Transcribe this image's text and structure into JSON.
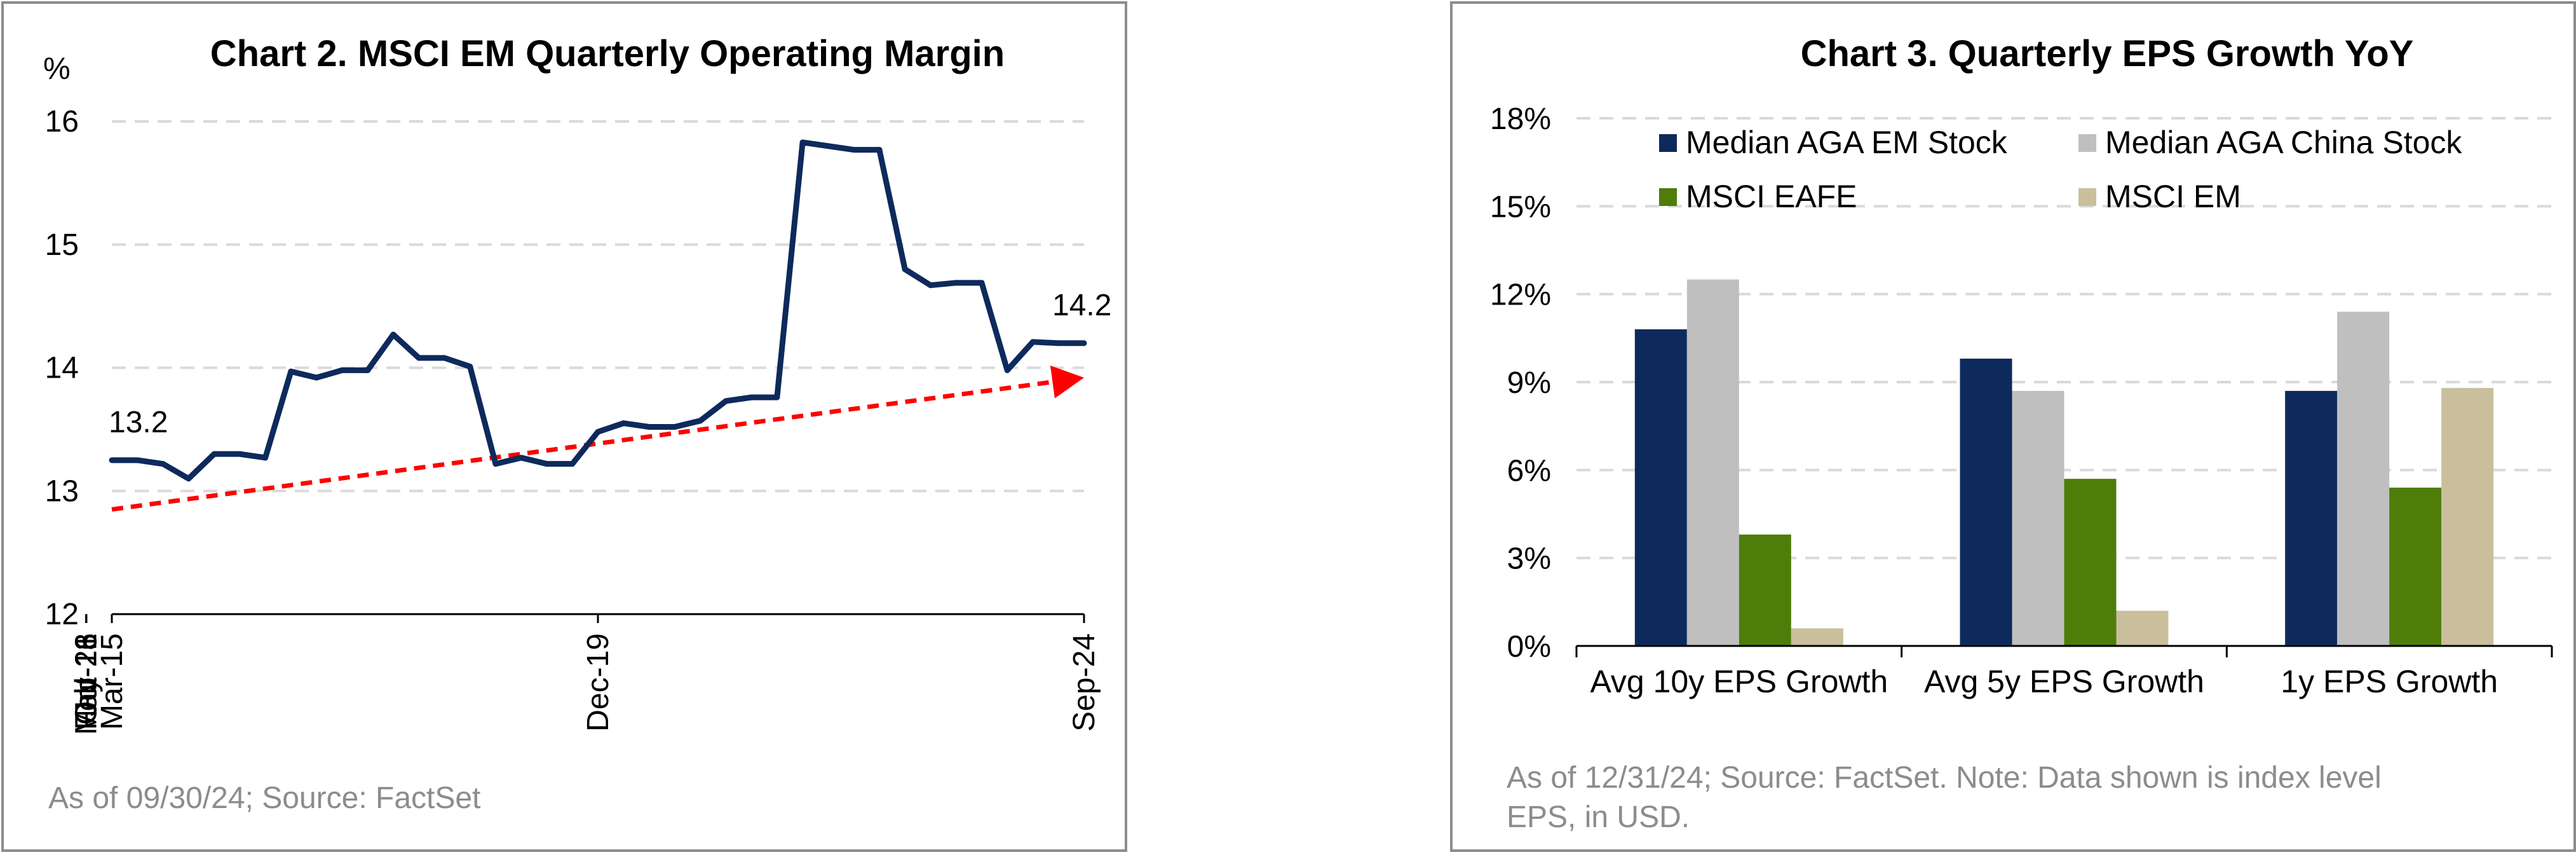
{
  "chart_data": [
    {
      "type": "line",
      "title": "Chart 2. MSCI EM Quarterly Operating Margin",
      "ylabel": "%",
      "ylim": [
        12,
        16
      ],
      "yticks": [
        "12",
        "13",
        "14",
        "15",
        "16"
      ],
      "xticks": [
        "Mar-15",
        "Oct-16",
        "May-18",
        "Dec-19",
        "Jul-21",
        "Feb-23",
        "Sep-24"
      ],
      "grid": true,
      "series": [
        {
          "color": "#0e2a5c",
          "x": [
            "Mar-15",
            "Jun-15",
            "Sep-15",
            "Dec-15",
            "Mar-16",
            "Jun-16",
            "Sep-16",
            "Dec-16",
            "Mar-17",
            "Jun-17",
            "Sep-17",
            "Dec-17",
            "Mar-18",
            "Jun-18",
            "Sep-18",
            "Dec-18",
            "Mar-19",
            "Jun-19",
            "Sep-19",
            "Dec-19",
            "Mar-20",
            "Jun-20",
            "Sep-20",
            "Dec-20",
            "Mar-21",
            "Jun-21",
            "Sep-21",
            "Dec-21",
            "Mar-22",
            "Jun-22",
            "Sep-22",
            "Dec-22",
            "Mar-23",
            "Jun-23",
            "Sep-23",
            "Dec-23",
            "Mar-24",
            "Jun-24",
            "Sep-24"
          ],
          "values": [
            13.25,
            13.25,
            13.22,
            13.1,
            13.3,
            13.3,
            13.27,
            13.97,
            13.92,
            13.98,
            13.98,
            14.27,
            14.08,
            14.08,
            14.01,
            13.22,
            13.27,
            13.22,
            13.22,
            13.48,
            13.55,
            13.52,
            13.52,
            13.57,
            13.73,
            13.76,
            13.76,
            15.83,
            15.8,
            15.77,
            15.77,
            14.8,
            14.67,
            14.69,
            14.69,
            13.98,
            14.21,
            14.2,
            14.2
          ]
        }
      ],
      "annotations": [
        {
          "label": "13.2",
          "x": "Mar-15",
          "y": 13.25
        },
        {
          "label": "14.2",
          "x": "Sep-24",
          "y": 14.2
        }
      ],
      "trendline": {
        "color": "#ff0000",
        "style": "dashed-arrow",
        "from": [
          "Mar-15",
          12.85
        ],
        "to": [
          "Sep-24",
          13.92
        ]
      },
      "source": "As of 09/30/24; Source: FactSet"
    },
    {
      "type": "bar",
      "title": "Chart 3. Quarterly EPS Growth YoY",
      "ylim": [
        0,
        18
      ],
      "yticks": [
        "0%",
        "3%",
        "6%",
        "9%",
        "12%",
        "15%",
        "18%"
      ],
      "categories": [
        "Avg 10y EPS Growth",
        "Avg 5y EPS Growth",
        "1y EPS Growth"
      ],
      "grid": true,
      "legend_position": "top",
      "series": [
        {
          "name": "Median AGA EM Stock",
          "color": "#0e2a5c",
          "values": [
            10.8,
            9.8,
            8.7
          ]
        },
        {
          "name": "Median AGA China Stock",
          "color": "#bfbfbf",
          "values": [
            12.5,
            8.7,
            11.4
          ]
        },
        {
          "name": "MSCI EAFE",
          "color": "#4e7d0a",
          "values": [
            3.8,
            5.7,
            5.4
          ]
        },
        {
          "name": "MSCI EM",
          "color": "#c9bf9c",
          "values": [
            0.6,
            1.2,
            8.8
          ]
        }
      ],
      "source_lines": [
        "As of 12/31/24; Source: FactSet. Note: Data shown is index level",
        "EPS, in USD."
      ]
    }
  ]
}
